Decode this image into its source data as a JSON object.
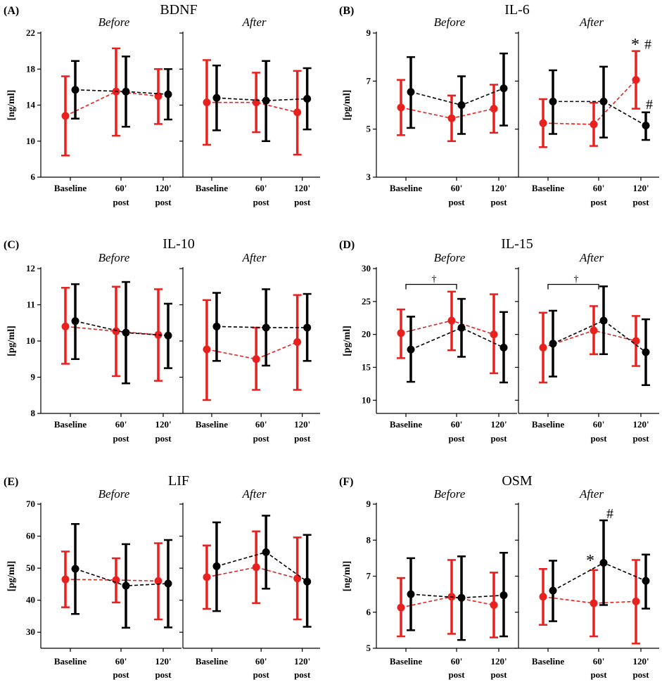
{
  "figure": {
    "x_categories": [
      "Baseline",
      "60'",
      "120'"
    ],
    "x_sublabels": [
      "",
      "post",
      "post"
    ],
    "colors": {
      "red": "#e8211f",
      "black": "#000000"
    }
  },
  "chart_data": [
    {
      "letter": "(A)",
      "title": "BDNF",
      "ylabel": "[ng/ml]",
      "yticks": [
        6,
        10,
        14,
        18,
        22
      ],
      "ylim": [
        6,
        22
      ],
      "type": "line-errorbar",
      "panels": [
        {
          "subtitle": "Before",
          "series": [
            {
              "name": "red",
              "mean": [
                12.8,
                15.5,
                15.0
              ],
              "lower": [
                8.4,
                10.6,
                11.9
              ],
              "upper": [
                17.2,
                20.3,
                18.0
              ]
            },
            {
              "name": "black",
              "mean": [
                15.7,
                15.5,
                15.2
              ],
              "lower": [
                12.5,
                11.6,
                12.4
              ],
              "upper": [
                18.9,
                19.4,
                18.0
              ]
            }
          ],
          "annotations": []
        },
        {
          "subtitle": "After",
          "series": [
            {
              "name": "red",
              "mean": [
                14.3,
                14.3,
                13.2
              ],
              "lower": [
                9.6,
                11.0,
                8.5
              ],
              "upper": [
                19.0,
                17.6,
                17.8
              ]
            },
            {
              "name": "black",
              "mean": [
                14.8,
                14.5,
                14.7
              ],
              "lower": [
                11.2,
                10.0,
                11.3
              ],
              "upper": [
                18.4,
                18.9,
                18.1
              ]
            }
          ],
          "annotations": []
        }
      ]
    },
    {
      "letter": "(B)",
      "title": "IL-6",
      "ylabel": "[pg/ml]",
      "yticks": [
        3,
        5,
        7,
        9
      ],
      "ylim": [
        3,
        9
      ],
      "type": "line-errorbar",
      "panels": [
        {
          "subtitle": "Before",
          "series": [
            {
              "name": "red",
              "mean": [
                5.9,
                5.45,
                5.85
              ],
              "lower": [
                4.75,
                4.5,
                4.85
              ],
              "upper": [
                7.05,
                6.4,
                6.85
              ]
            },
            {
              "name": "black",
              "mean": [
                6.55,
                6.0,
                6.7
              ],
              "lower": [
                5.05,
                4.8,
                5.15
              ],
              "upper": [
                8.0,
                7.2,
                8.15
              ]
            }
          ],
          "annotations": []
        },
        {
          "subtitle": "After",
          "series": [
            {
              "name": "red",
              "mean": [
                5.25,
                5.2,
                7.05
              ],
              "lower": [
                4.25,
                4.3,
                5.85
              ],
              "upper": [
                6.25,
                6.1,
                8.25
              ]
            },
            {
              "name": "black",
              "mean": [
                6.15,
                6.15,
                5.15
              ],
              "lower": [
                4.8,
                4.65,
                4.55
              ],
              "upper": [
                7.45,
                7.6,
                5.7
              ]
            }
          ],
          "annotations": [
            {
              "text": "*",
              "category": 2,
              "value": 8.55,
              "dx": -8,
              "size": 24
            },
            {
              "text": "#",
              "category": 2,
              "value": 8.55,
              "dx": 10,
              "size": 20
            },
            {
              "text": "#",
              "category": 2,
              "value": 6.05,
              "dx": 12,
              "size": 20
            }
          ]
        }
      ]
    },
    {
      "letter": "(C)",
      "title": "IL-10",
      "ylabel": "[pg/ml]",
      "yticks": [
        8,
        9,
        10,
        11,
        12
      ],
      "ylim": [
        8,
        12
      ],
      "type": "line-errorbar",
      "panels": [
        {
          "subtitle": "Before",
          "series": [
            {
              "name": "red",
              "mean": [
                10.4,
                10.27,
                10.17
              ],
              "lower": [
                9.37,
                9.03,
                8.9
              ],
              "upper": [
                11.47,
                11.5,
                11.43
              ]
            },
            {
              "name": "black",
              "mean": [
                10.55,
                10.23,
                10.15
              ],
              "lower": [
                9.5,
                8.83,
                9.25
              ],
              "upper": [
                11.57,
                11.63,
                11.03
              ]
            }
          ],
          "annotations": []
        },
        {
          "subtitle": "After",
          "series": [
            {
              "name": "red",
              "mean": [
                9.77,
                9.5,
                9.97
              ],
              "lower": [
                8.37,
                8.65,
                8.65
              ],
              "upper": [
                11.13,
                10.37,
                11.27
              ]
            },
            {
              "name": "black",
              "mean": [
                10.4,
                10.37,
                10.37
              ],
              "lower": [
                9.45,
                9.32,
                9.45
              ],
              "upper": [
                11.33,
                11.43,
                11.3
              ]
            }
          ],
          "annotations": []
        }
      ]
    },
    {
      "letter": "(D)",
      "title": "IL-15",
      "ylabel": "[pg/ml]",
      "yticks": [
        10,
        15,
        20,
        25,
        30
      ],
      "ylim": [
        8,
        30
      ],
      "type": "line-errorbar",
      "panels": [
        {
          "subtitle": "Before",
          "series": [
            {
              "name": "red",
              "mean": [
                20.2,
                22.1,
                20.0
              ],
              "lower": [
                16.4,
                17.6,
                14.1
              ],
              "upper": [
                23.8,
                26.5,
                26.1
              ]
            },
            {
              "name": "black",
              "mean": [
                17.7,
                21.0,
                18.0
              ],
              "lower": [
                12.8,
                16.6,
                12.7
              ],
              "upper": [
                22.7,
                25.4,
                23.4
              ]
            }
          ],
          "annotations": [
            {
              "text": "†",
              "category": 0.5,
              "value": 28.5,
              "dx": 4,
              "size": 14
            }
          ],
          "brackets": [
            {
              "from": 0,
              "to": 1,
              "value": 27.6
            }
          ]
        },
        {
          "subtitle": "After",
          "series": [
            {
              "name": "red",
              "mean": [
                18.0,
                20.6,
                19.0
              ],
              "lower": [
                12.7,
                17.0,
                15.2
              ],
              "upper": [
                23.3,
                24.3,
                22.8
              ]
            },
            {
              "name": "black",
              "mean": [
                18.6,
                22.1,
                17.3
              ],
              "lower": [
                13.6,
                17.0,
                12.3
              ],
              "upper": [
                23.6,
                27.3,
                22.3
              ]
            }
          ],
          "annotations": [
            {
              "text": "†",
              "category": 0.5,
              "value": 28.5,
              "dx": 4,
              "size": 14
            }
          ],
          "brackets": [
            {
              "from": 0,
              "to": 1,
              "value": 27.6
            }
          ]
        }
      ]
    },
    {
      "letter": "(E)",
      "title": "LIF",
      "ylabel": "[pg/ml]",
      "yticks": [
        30,
        40,
        50,
        60,
        70
      ],
      "ylim": [
        25,
        70
      ],
      "type": "line-errorbar",
      "panels": [
        {
          "subtitle": "Before",
          "series": [
            {
              "name": "red",
              "mean": [
                46.5,
                46.3,
                46.0
              ],
              "lower": [
                37.8,
                39.3,
                34.0
              ],
              "upper": [
                55.2,
                53.1,
                57.8
              ]
            },
            {
              "name": "black",
              "mean": [
                49.8,
                44.5,
                45.2
              ],
              "lower": [
                35.7,
                31.4,
                31.5
              ],
              "upper": [
                63.8,
                57.5,
                58.8
              ]
            }
          ],
          "annotations": []
        },
        {
          "subtitle": "After",
          "series": [
            {
              "name": "red",
              "mean": [
                47.2,
                50.3,
                46.8
              ],
              "lower": [
                37.3,
                39.1,
                34.0
              ],
              "upper": [
                57.1,
                61.5,
                59.6
              ]
            },
            {
              "name": "black",
              "mean": [
                50.6,
                55.0,
                45.8
              ],
              "lower": [
                36.6,
                43.6,
                31.7
              ],
              "upper": [
                64.3,
                66.4,
                60.4
              ]
            }
          ],
          "annotations": []
        }
      ]
    },
    {
      "letter": "(F)",
      "title": "OSM",
      "ylabel": "[ng/ml]",
      "yticks": [
        5,
        6,
        7,
        8,
        9
      ],
      "ylim": [
        5,
        9
      ],
      "type": "line-errorbar",
      "panels": [
        {
          "subtitle": "Before",
          "series": [
            {
              "name": "red",
              "mean": [
                6.13,
                6.43,
                6.2
              ],
              "lower": [
                5.33,
                5.4,
                5.3
              ],
              "upper": [
                6.95,
                7.45,
                7.1
              ]
            },
            {
              "name": "black",
              "mean": [
                6.5,
                6.4,
                6.47
              ],
              "lower": [
                5.5,
                5.23,
                5.33
              ],
              "upper": [
                7.5,
                7.55,
                7.65
              ]
            }
          ],
          "annotations": []
        },
        {
          "subtitle": "After",
          "series": [
            {
              "name": "red",
              "mean": [
                6.43,
                6.25,
                6.3
              ],
              "lower": [
                5.65,
                5.33,
                5.13
              ],
              "upper": [
                7.2,
                7.17,
                7.45
              ]
            },
            {
              "name": "black",
              "mean": [
                6.6,
                7.37,
                6.87
              ],
              "lower": [
                5.75,
                6.2,
                6.1
              ],
              "upper": [
                7.43,
                8.55,
                7.6
              ]
            }
          ],
          "annotations": [
            {
              "text": "*",
              "category": 1,
              "value": 7.45,
              "dx": -12,
              "size": 24
            },
            {
              "text": "#",
              "category": 1,
              "value": 8.75,
              "dx": 16,
              "size": 20
            }
          ]
        }
      ]
    }
  ]
}
